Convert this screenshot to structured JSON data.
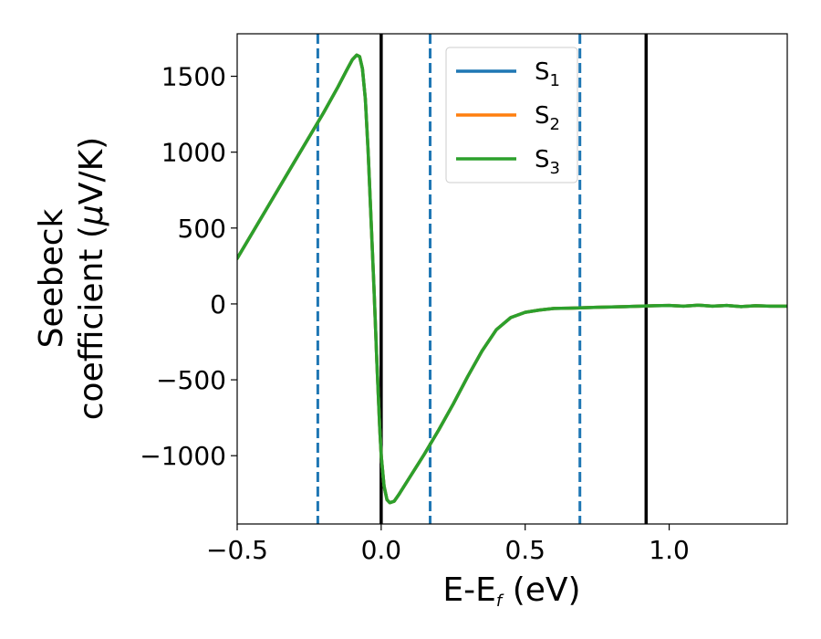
{
  "chart_data": {
    "type": "line",
    "xlabel": {
      "main": "E-E",
      "sub": "f",
      "unit": " (eV)"
    },
    "ylabel": {
      "line1": "Seebeck",
      "line2": "coefficient  (",
      "mu": "μ",
      "unit": "V/K)"
    },
    "xlim": [
      -0.5,
      1.41
    ],
    "ylim": [
      -1450,
      1780
    ],
    "xticks": [
      -0.5,
      0.0,
      0.5,
      1.0
    ],
    "xtick_labels": [
      "−0.5",
      "0.0",
      "0.5",
      "1.0"
    ],
    "yticks": [
      -1000,
      -500,
      0,
      500,
      1000,
      1500
    ],
    "ytick_labels": [
      "−1000",
      "−500",
      "0",
      "500",
      "1000",
      "1500"
    ],
    "grid": false,
    "legend": {
      "placement": "top-center",
      "entries": [
        {
          "base": "S",
          "sub": "1",
          "color": "#1f77b4"
        },
        {
          "base": "S",
          "sub": "2",
          "color": "#ff7f0e"
        },
        {
          "base": "S",
          "sub": "3",
          "color": "#2ca02c"
        }
      ]
    },
    "series": [
      {
        "name": "S1",
        "color": "#1f77b4",
        "x": [
          -0.5,
          -0.4,
          -0.3,
          -0.2,
          -0.15,
          -0.12,
          -0.1,
          -0.085,
          -0.075,
          -0.065,
          -0.055,
          -0.045,
          -0.035,
          -0.025,
          -0.015,
          -0.005,
          0.0,
          0.01,
          0.02,
          0.03,
          0.045,
          0.06,
          0.1,
          0.15,
          0.2,
          0.25,
          0.3,
          0.35,
          0.4,
          0.45,
          0.5,
          0.55,
          0.6,
          0.65,
          0.7,
          0.75,
          0.8,
          0.85,
          0.9,
          0.95,
          1.0,
          1.05,
          1.1,
          1.15,
          1.2,
          1.25,
          1.3,
          1.35,
          1.41
        ],
        "y": [
          300,
          620,
          940,
          1260,
          1430,
          1540,
          1610,
          1640,
          1630,
          1550,
          1350,
          1000,
          550,
          100,
          -380,
          -820,
          -1000,
          -1200,
          -1290,
          -1310,
          -1300,
          -1260,
          -1140,
          -990,
          -830,
          -660,
          -480,
          -310,
          -170,
          -90,
          -55,
          -40,
          -30,
          -28,
          -25,
          -22,
          -20,
          -18,
          -15,
          -12,
          -10,
          -15,
          -8,
          -15,
          -10,
          -18,
          -12,
          -15,
          -15
        ]
      },
      {
        "name": "S2",
        "color": "#ff7f0e",
        "x": [
          -0.5,
          -0.4,
          -0.3,
          -0.2,
          -0.15,
          -0.12,
          -0.1,
          -0.085,
          -0.075,
          -0.065,
          -0.055,
          -0.045,
          -0.035,
          -0.025,
          -0.015,
          -0.005,
          0.0,
          0.01,
          0.02,
          0.03,
          0.045,
          0.06,
          0.1,
          0.15,
          0.2,
          0.25,
          0.3,
          0.35,
          0.4,
          0.45,
          0.5,
          0.55,
          0.6,
          0.65,
          0.7,
          0.75,
          0.8,
          0.85,
          0.9,
          0.95,
          1.0,
          1.05,
          1.1,
          1.15,
          1.2,
          1.25,
          1.3,
          1.35,
          1.41
        ],
        "y": [
          300,
          620,
          940,
          1260,
          1430,
          1540,
          1610,
          1640,
          1630,
          1550,
          1350,
          1000,
          550,
          100,
          -380,
          -820,
          -1000,
          -1200,
          -1290,
          -1310,
          -1300,
          -1260,
          -1140,
          -990,
          -830,
          -660,
          -480,
          -310,
          -170,
          -90,
          -55,
          -40,
          -30,
          -28,
          -25,
          -22,
          -20,
          -18,
          -15,
          -12,
          -10,
          -15,
          -8,
          -15,
          -10,
          -18,
          -12,
          -15,
          -15
        ]
      },
      {
        "name": "S3",
        "color": "#2ca02c",
        "x": [
          -0.5,
          -0.4,
          -0.3,
          -0.2,
          -0.15,
          -0.12,
          -0.1,
          -0.085,
          -0.075,
          -0.065,
          -0.055,
          -0.045,
          -0.035,
          -0.025,
          -0.015,
          -0.005,
          0.0,
          0.01,
          0.02,
          0.03,
          0.045,
          0.06,
          0.1,
          0.15,
          0.2,
          0.25,
          0.3,
          0.35,
          0.4,
          0.45,
          0.5,
          0.55,
          0.6,
          0.65,
          0.7,
          0.75,
          0.8,
          0.85,
          0.9,
          0.95,
          1.0,
          1.05,
          1.1,
          1.15,
          1.2,
          1.25,
          1.3,
          1.35,
          1.41
        ],
        "y": [
          300,
          620,
          940,
          1260,
          1430,
          1540,
          1610,
          1640,
          1630,
          1550,
          1350,
          1000,
          550,
          100,
          -380,
          -820,
          -1000,
          -1200,
          -1290,
          -1310,
          -1300,
          -1260,
          -1140,
          -990,
          -830,
          -660,
          -480,
          -310,
          -170,
          -90,
          -55,
          -40,
          -30,
          -28,
          -25,
          -22,
          -20,
          -18,
          -15,
          -12,
          -10,
          -15,
          -8,
          -15,
          -10,
          -18,
          -12,
          -15,
          -15
        ]
      }
    ],
    "vlines": [
      {
        "x": -0.22,
        "style": "dashed",
        "color": "#1f77b4"
      },
      {
        "x": 0.0,
        "style": "solid",
        "color": "#000000"
      },
      {
        "x": 0.17,
        "style": "dashed",
        "color": "#1f77b4"
      },
      {
        "x": 0.69,
        "style": "dashed",
        "color": "#1f77b4"
      },
      {
        "x": 0.92,
        "style": "solid",
        "color": "#000000"
      }
    ]
  }
}
